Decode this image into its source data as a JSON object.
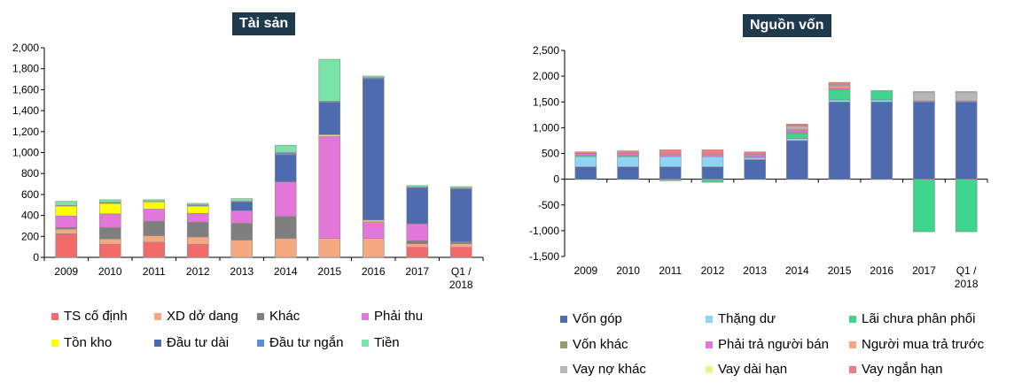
{
  "chart_data": [
    {
      "type": "bar",
      "stacked": true,
      "title": "Tài sản",
      "xlabel": "",
      "ylabel": "",
      "categories": [
        "2009",
        "2010",
        "2011",
        "2012",
        "2013",
        "2014",
        "2015",
        "2016",
        "2017",
        "Q1 / 2018"
      ],
      "ylim": [
        0,
        2000
      ],
      "yticks": [
        0,
        200,
        400,
        600,
        800,
        1000,
        1200,
        1400,
        1600,
        1800,
        2000
      ],
      "ytick_labels": [
        "0",
        "200",
        "400",
        "600",
        "800",
        "1,000",
        "1,200",
        "1,400",
        "1,600",
        "1,800",
        "2,000"
      ],
      "legend_position": "bottom",
      "series": [
        {
          "name": "TS cố định",
          "color": "#f26b6b",
          "values": [
            225,
            125,
            145,
            125,
            0,
            0,
            0,
            0,
            95,
            95
          ]
        },
        {
          "name": "XD dở dang",
          "color": "#f4a983",
          "values": [
            45,
            50,
            60,
            70,
            165,
            180,
            180,
            180,
            35,
            35
          ]
        },
        {
          "name": "Khác",
          "color": "#7f7f7f",
          "values": [
            15,
            110,
            140,
            140,
            160,
            210,
            0,
            0,
            30,
            20
          ]
        },
        {
          "name": "Phải thu",
          "color": "#e377d9",
          "values": [
            110,
            130,
            115,
            85,
            120,
            330,
            975,
            160,
            160,
            0
          ]
        },
        {
          "name": "Tồn kho",
          "color": "#ffff00",
          "values": [
            95,
            100,
            70,
            70,
            0,
            0,
            15,
            15,
            0,
            0
          ]
        },
        {
          "name": "Đầu tư dài",
          "color": "#4e6bb0",
          "values": [
            0,
            0,
            0,
            0,
            85,
            260,
            310,
            1350,
            345,
            505
          ]
        },
        {
          "name": "Đầu tư ngắn",
          "color": "#5b8fd6",
          "values": [
            5,
            10,
            5,
            10,
            5,
            20,
            10,
            10,
            5,
            5
          ]
        },
        {
          "name": "Tiền",
          "color": "#7ae3a8",
          "values": [
            40,
            25,
            15,
            15,
            25,
            70,
            400,
            15,
            15,
            15
          ]
        }
      ]
    },
    {
      "type": "bar",
      "stacked": true,
      "title": "Nguồn vốn",
      "xlabel": "",
      "ylabel": "",
      "categories": [
        "2009",
        "2010",
        "2011",
        "2012",
        "2013",
        "2014",
        "2015",
        "2016",
        "2017",
        "Q1 / 2018"
      ],
      "ylim": [
        -1500,
        2500
      ],
      "yticks": [
        -1500,
        -1000,
        -500,
        0,
        500,
        1000,
        1500,
        2000,
        2500
      ],
      "ytick_labels": [
        "-1,500",
        "-1,000",
        "-500",
        "0",
        "500",
        "1,000",
        "1,500",
        "2,000",
        "2,500"
      ],
      "legend_position": "bottom",
      "series": [
        {
          "name": "Vốn góp",
          "color": "#4e6bb0",
          "values": [
            240,
            240,
            240,
            240,
            380,
            750,
            1500,
            1500,
            1500,
            1500
          ]
        },
        {
          "name": "Thặng dư",
          "color": "#8fd3f5",
          "values": [
            200,
            200,
            200,
            200,
            40,
            40,
            40,
            40,
            0,
            0
          ]
        },
        {
          "name": "Lãi chưa phân phối",
          "color": "#3dd68c",
          "values": [
            30,
            20,
            -30,
            -60,
            20,
            100,
            200,
            180,
            -1020,
            -1020
          ]
        },
        {
          "name": "Vốn khác",
          "color": "#8f9e6b",
          "values": [
            0,
            0,
            0,
            0,
            0,
            20,
            0,
            0,
            0,
            0
          ]
        },
        {
          "name": "Phải trả người bán",
          "color": "#e377d9",
          "values": [
            30,
            40,
            40,
            40,
            40,
            40,
            30,
            0,
            20,
            20
          ]
        },
        {
          "name": "Người mua trả trước",
          "color": "#f4a983",
          "values": [
            0,
            0,
            0,
            0,
            0,
            20,
            40,
            0,
            0,
            0
          ]
        },
        {
          "name": "Vay nợ khác",
          "color": "#b7b7b7",
          "values": [
            0,
            0,
            0,
            0,
            0,
            60,
            20,
            0,
            170,
            170
          ]
        },
        {
          "name": "Vay dài hạn",
          "color": "#f0f28a",
          "values": [
            0,
            0,
            0,
            0,
            0,
            0,
            0,
            0,
            10,
            10
          ]
        },
        {
          "name": "Vay ngắn hạn",
          "color": "#f07c7c",
          "values": [
            30,
            50,
            90,
            90,
            50,
            40,
            50,
            0,
            0,
            0
          ]
        }
      ]
    }
  ]
}
